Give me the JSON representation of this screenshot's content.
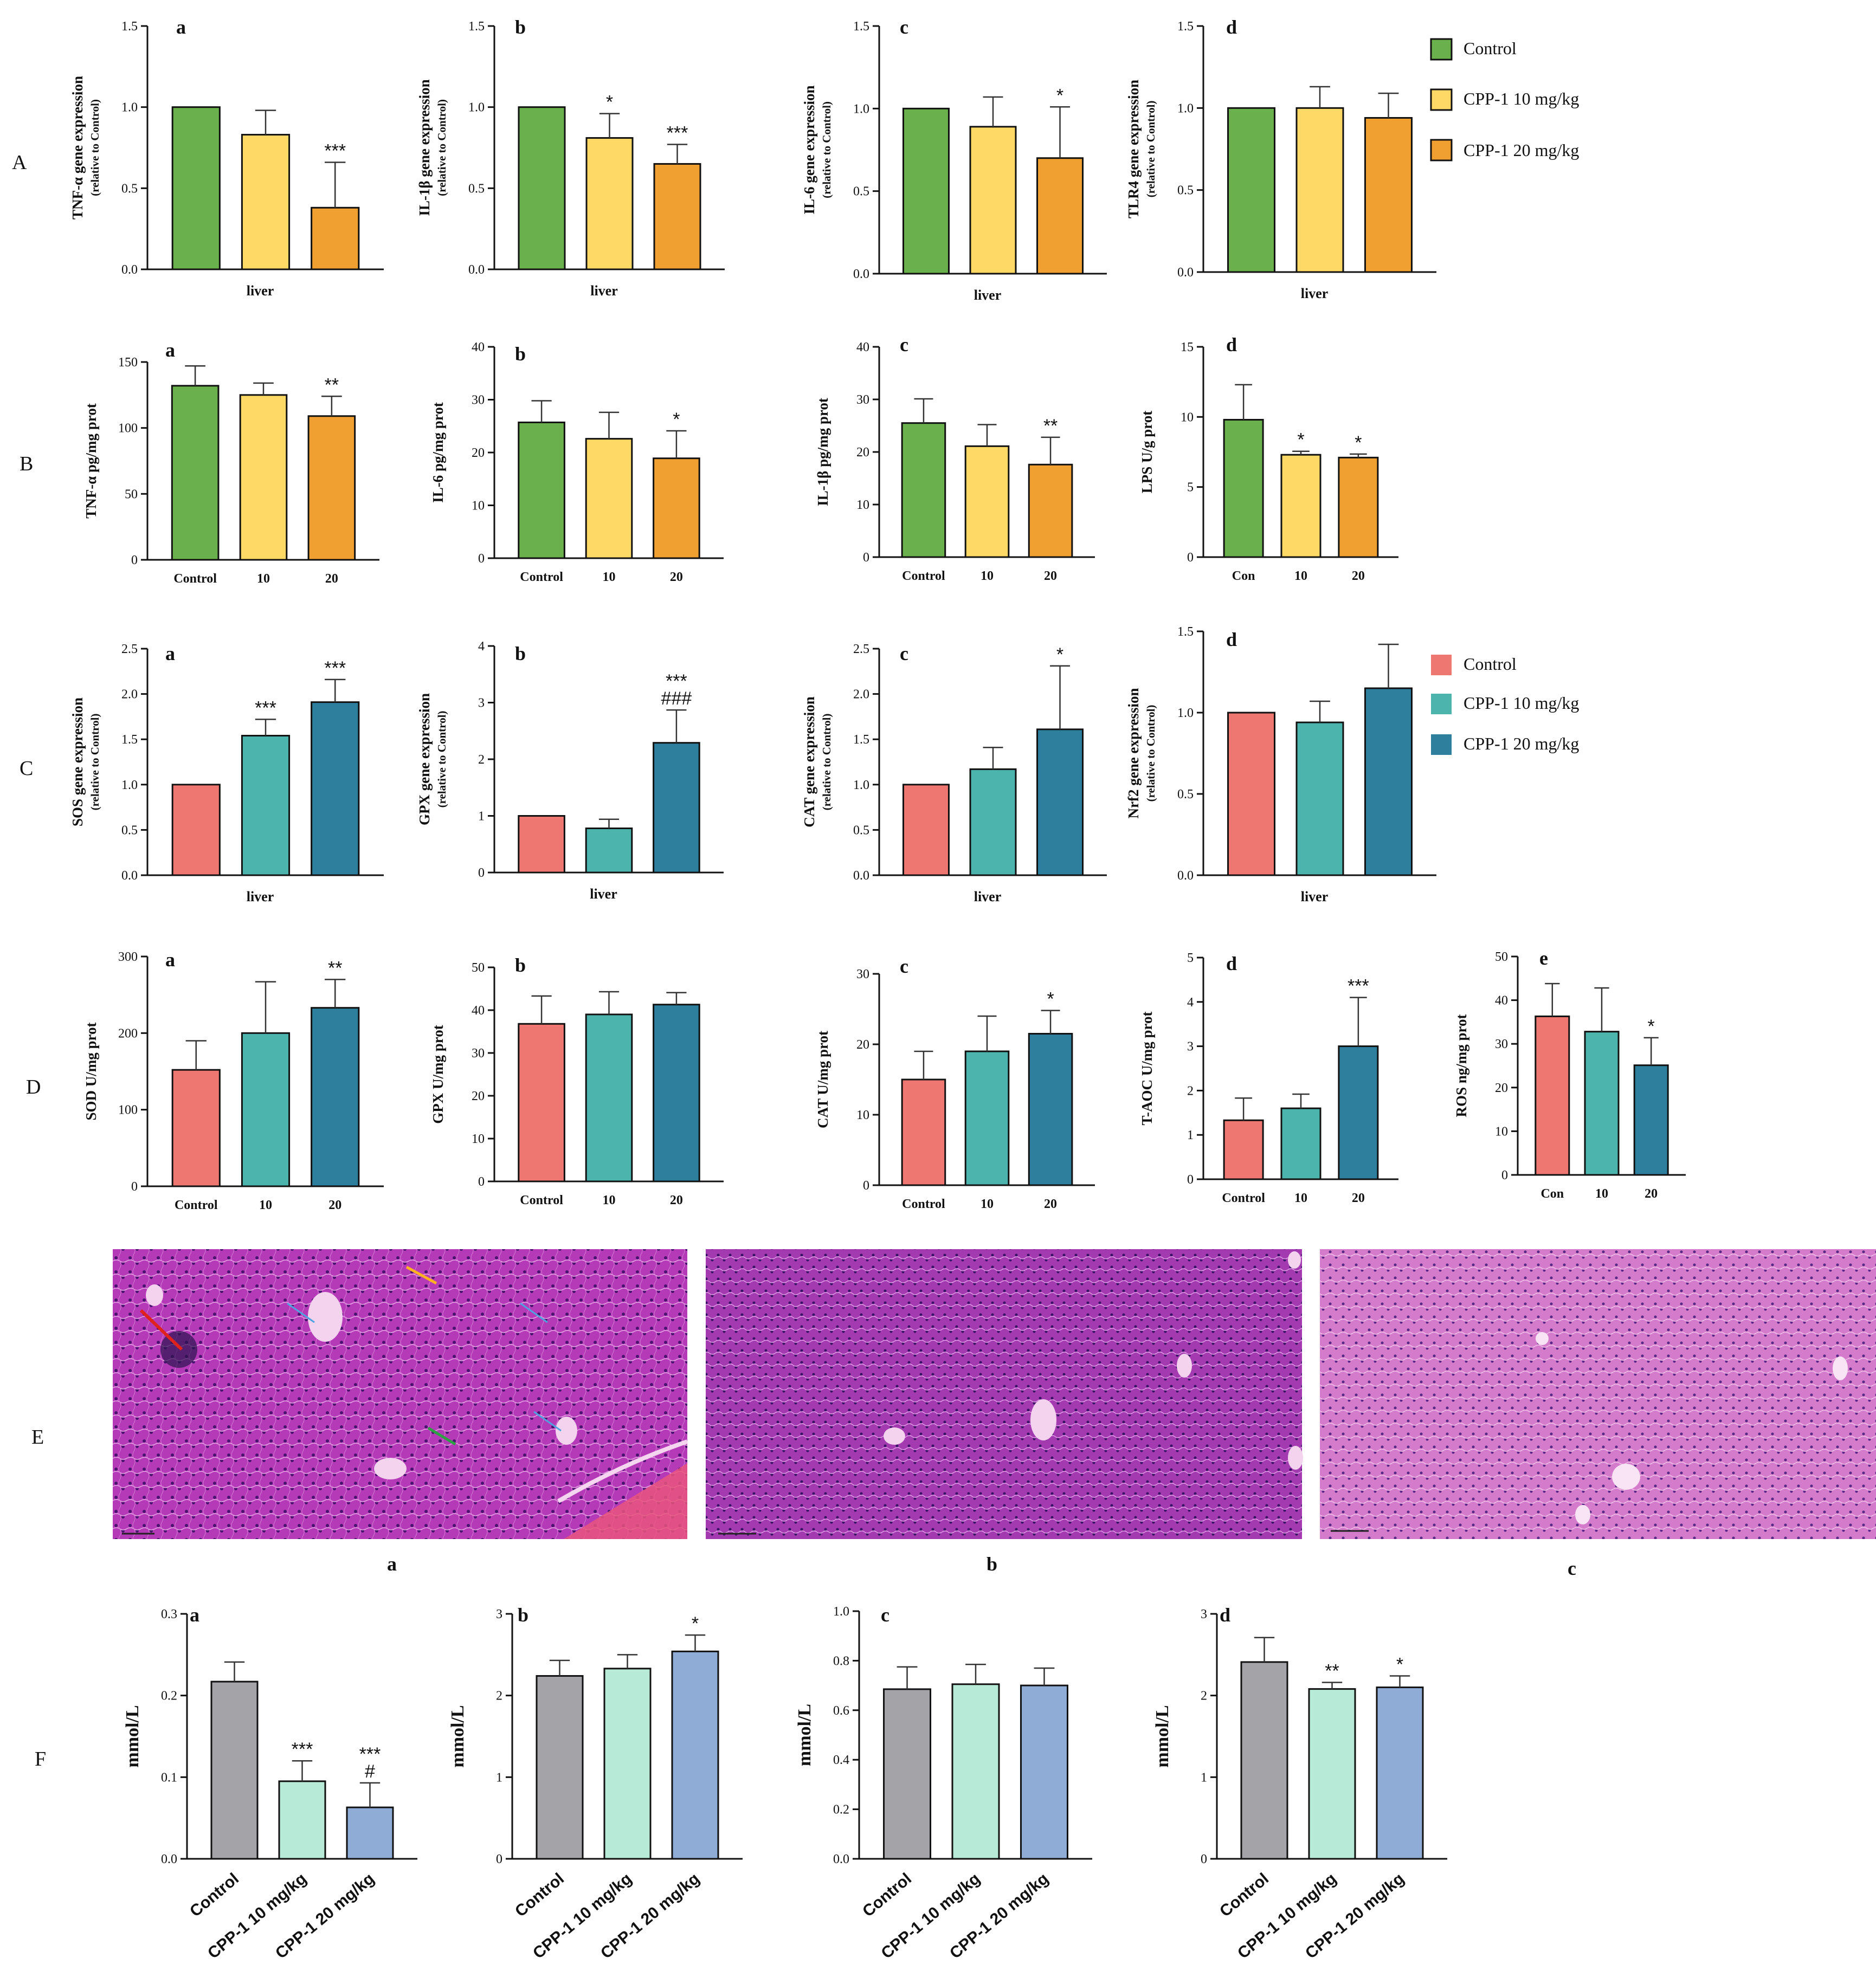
{
  "row_labels": [
    "A",
    "B",
    "C",
    "D",
    "E",
    "F"
  ],
  "legends": {
    "green_orange": [
      {
        "label": "Control",
        "color": "#6ab04c"
      },
      {
        "label": "CPP-1 10 mg/kg",
        "color": "#ffd966"
      },
      {
        "label": "CPP-1 20 mg/kg",
        "color": "#f0a030"
      }
    ],
    "red_teal": [
      {
        "label": "Control",
        "color": "#ee7772"
      },
      {
        "label": "CPP-1 10 mg/kg",
        "color": "#4db3ad"
      },
      {
        "label": "CPP-1 20 mg/kg",
        "color": "#2e7f9e"
      }
    ]
  },
  "histology": {
    "labels": [
      "a",
      "b",
      "c"
    ]
  },
  "chart_data": [
    {
      "id": "A-a",
      "type": "bar",
      "panel": "a",
      "title": "",
      "ylabel": "TNF-α gene expression",
      "ylabel2": "(relative to Control)",
      "xlabel": "liver",
      "categories": [
        "",
        "",
        ""
      ],
      "values": [
        1.0,
        0.83,
        0.38
      ],
      "errors": [
        0,
        0.15,
        0.28
      ],
      "sig": [
        "",
        "",
        "***"
      ],
      "ylim": [
        0,
        1.5
      ],
      "yticks": [
        "0.0",
        "0.5",
        "1.0",
        "1.5"
      ],
      "palette": "go"
    },
    {
      "id": "A-b",
      "type": "bar",
      "panel": "b",
      "ylabel": "IL-1β gene expression",
      "ylabel2": "(relative to Control)",
      "xlabel": "liver",
      "categories": [
        "",
        "",
        ""
      ],
      "values": [
        1.0,
        0.81,
        0.65
      ],
      "errors": [
        0,
        0.15,
        0.12
      ],
      "sig": [
        "",
        "*",
        "***"
      ],
      "ylim": [
        0,
        1.5
      ],
      "yticks": [
        "0.0",
        "0.5",
        "1.0",
        "1.5"
      ],
      "palette": "go"
    },
    {
      "id": "A-c",
      "type": "bar",
      "panel": "c",
      "ylabel": "IL-6 gene expression",
      "ylabel2": "(relative to Control)",
      "xlabel": "liver",
      "categories": [
        "",
        "",
        ""
      ],
      "values": [
        1.0,
        0.89,
        0.7
      ],
      "errors": [
        0,
        0.18,
        0.31
      ],
      "sig": [
        "",
        "",
        "*"
      ],
      "ylim": [
        0,
        1.5
      ],
      "yticks": [
        "0.0",
        "0.5",
        "1.0",
        "1.5"
      ],
      "palette": "go"
    },
    {
      "id": "A-d",
      "type": "bar",
      "panel": "d",
      "ylabel": "TLR4 gene expression",
      "ylabel2": "(relative to Control)",
      "xlabel": "liver",
      "categories": [
        "",
        "",
        ""
      ],
      "values": [
        1.0,
        1.0,
        0.94
      ],
      "errors": [
        0,
        0.13,
        0.15
      ],
      "sig": [
        "",
        "",
        ""
      ],
      "ylim": [
        0,
        1.5
      ],
      "yticks": [
        "0.0",
        "0.5",
        "1.0",
        "1.5"
      ],
      "palette": "go"
    },
    {
      "id": "B-a",
      "type": "bar",
      "panel": "a",
      "ylabel": "TNF-α pg/mg prot",
      "xlabel": "",
      "categories": [
        "Control",
        "10",
        "20"
      ],
      "values": [
        132,
        125,
        109
      ],
      "errors": [
        15,
        9,
        15
      ],
      "sig": [
        "",
        "",
        "**"
      ],
      "ylim": [
        0,
        150
      ],
      "yticks": [
        "0",
        "50",
        "100",
        "150"
      ],
      "palette": "go"
    },
    {
      "id": "B-b",
      "type": "bar",
      "panel": "b",
      "ylabel": "IL-6 pg/mg prot",
      "xlabel": "",
      "categories": [
        "Control",
        "10",
        "20"
      ],
      "values": [
        25.7,
        22.6,
        18.9
      ],
      "errors": [
        4.1,
        5,
        5.2
      ],
      "sig": [
        "",
        "",
        "*"
      ],
      "ylim": [
        0,
        40
      ],
      "yticks": [
        "0",
        "10",
        "20",
        "30",
        "40"
      ],
      "palette": "go"
    },
    {
      "id": "B-c",
      "type": "bar",
      "panel": "c",
      "ylabel": "IL-1β pg/mg prot",
      "xlabel": "",
      "categories": [
        "Control",
        "10",
        "20"
      ],
      "values": [
        25.5,
        21.1,
        17.6
      ],
      "errors": [
        4.6,
        4.1,
        5.2
      ],
      "sig": [
        "",
        "",
        "**"
      ],
      "ylim": [
        0,
        40
      ],
      "yticks": [
        "0",
        "10",
        "20",
        "30",
        "40"
      ],
      "palette": "go"
    },
    {
      "id": "B-d",
      "type": "bar",
      "panel": "d",
      "ylabel": "LPS U/g prot",
      "xlabel": "",
      "categories": [
        "Con",
        "10",
        "20"
      ],
      "values": [
        9.8,
        7.3,
        7.1
      ],
      "errors": [
        2.5,
        0.25,
        0.25
      ],
      "sig": [
        "",
        "*",
        "*"
      ],
      "ylim": [
        0,
        15
      ],
      "yticks": [
        "0",
        "5",
        "10",
        "15"
      ],
      "palette": "go"
    },
    {
      "id": "C-a",
      "type": "bar",
      "panel": "a",
      "ylabel": "SOS gene expression",
      "ylabel2": "(relative to Control)",
      "xlabel": "liver",
      "categories": [
        "",
        "",
        ""
      ],
      "values": [
        1.0,
        1.54,
        1.91
      ],
      "errors": [
        0,
        0.18,
        0.25
      ],
      "sig": [
        "",
        "***",
        "***"
      ],
      "ylim": [
        0,
        2.5
      ],
      "yticks": [
        "0.0",
        "0.5",
        "1.0",
        "1.5",
        "2.0",
        "2.5"
      ],
      "palette": "rt"
    },
    {
      "id": "C-b",
      "type": "bar",
      "panel": "b",
      "ylabel": "GPX gene expression",
      "ylabel2": "(relative to Control)",
      "xlabel": "liver",
      "categories": [
        "",
        "",
        ""
      ],
      "values": [
        1.0,
        0.78,
        2.29
      ],
      "errors": [
        0,
        0.16,
        0.58
      ],
      "sig": [
        "",
        "",
        "***|###"
      ],
      "ylim": [
        0,
        4
      ],
      "yticks": [
        "0",
        "1",
        "2",
        "3",
        "4"
      ],
      "palette": "rt"
    },
    {
      "id": "C-c",
      "type": "bar",
      "panel": "c",
      "ylabel": "CAT gene expression",
      "ylabel2": "(relative to Control)",
      "xlabel": "liver",
      "categories": [
        "",
        "",
        ""
      ],
      "values": [
        1.0,
        1.17,
        1.61
      ],
      "errors": [
        0,
        0.24,
        0.7
      ],
      "sig": [
        "",
        "",
        "*"
      ],
      "ylim": [
        0,
        2.5
      ],
      "yticks": [
        "0.0",
        "0.5",
        "1.0",
        "1.5",
        "2.0",
        "2.5"
      ],
      "palette": "rt"
    },
    {
      "id": "C-d",
      "type": "bar",
      "panel": "d",
      "ylabel": "Nrf2 gene expression",
      "ylabel2": "(relative to Control)",
      "xlabel": "liver",
      "categories": [
        "",
        "",
        ""
      ],
      "values": [
        1.0,
        0.94,
        1.15
      ],
      "errors": [
        0,
        0.13,
        0.27
      ],
      "sig": [
        "",
        "",
        ""
      ],
      "ylim": [
        0,
        1.5
      ],
      "yticks": [
        "0.0",
        "0.5",
        "1.0",
        "1.5"
      ],
      "palette": "rt"
    },
    {
      "id": "D-a",
      "type": "bar",
      "panel": "a",
      "ylabel": "SOD U/mg prot",
      "xlabel": "",
      "categories": [
        "Control",
        "10",
        "20"
      ],
      "values": [
        152,
        200,
        233
      ],
      "errors": [
        38,
        67,
        37
      ],
      "sig": [
        "",
        "",
        "**"
      ],
      "ylim": [
        0,
        300
      ],
      "yticks": [
        "0",
        "100",
        "200",
        "300"
      ],
      "palette": "rt"
    },
    {
      "id": "D-b",
      "type": "bar",
      "panel": "b",
      "ylabel": "GPX U/mg prot",
      "xlabel": "",
      "categories": [
        "Control",
        "10",
        "20"
      ],
      "values": [
        36.8,
        39,
        41.3
      ],
      "errors": [
        6.5,
        5.3,
        2.8
      ],
      "sig": [
        "",
        "",
        ""
      ],
      "ylim": [
        0,
        50
      ],
      "yticks": [
        "0",
        "10",
        "20",
        "30",
        "40",
        "50"
      ],
      "palette": "rt"
    },
    {
      "id": "D-c",
      "type": "bar",
      "panel": "c",
      "ylabel": "CAT U/mg prot",
      "xlabel": "",
      "categories": [
        "Control",
        "10",
        "20"
      ],
      "values": [
        15,
        19,
        21.5
      ],
      "errors": [
        4,
        5,
        3.3
      ],
      "sig": [
        "",
        "",
        "*"
      ],
      "ylim": [
        0,
        30
      ],
      "yticks": [
        "0",
        "10",
        "20",
        "30"
      ],
      "palette": "rt"
    },
    {
      "id": "D-d",
      "type": "bar",
      "panel": "d",
      "ylabel": "T-AOC U/mg prot",
      "xlabel": "",
      "categories": [
        "Control",
        "10",
        "20"
      ],
      "values": [
        1.33,
        1.6,
        3.0
      ],
      "errors": [
        0.5,
        0.32,
        1.1
      ],
      "sig": [
        "",
        "",
        "***"
      ],
      "ylim": [
        0,
        5
      ],
      "yticks": [
        "0",
        "1",
        "2",
        "3",
        "4",
        "5"
      ],
      "palette": "rt"
    },
    {
      "id": "D-e",
      "type": "bar",
      "panel": "e",
      "ylabel": "ROS ng/mg prot",
      "xlabel": "",
      "categories": [
        "Con",
        "10",
        "20"
      ],
      "values": [
        36.3,
        32.8,
        25.1
      ],
      "errors": [
        7.5,
        10,
        6.3
      ],
      "sig": [
        "",
        "",
        "*"
      ],
      "ylim": [
        0,
        50
      ],
      "yticks": [
        "0",
        "10",
        "20",
        "30",
        "40",
        "50"
      ],
      "palette": "rt"
    },
    {
      "id": "F-a",
      "type": "bar",
      "panel": "a",
      "ylabel": "mmol/L",
      "xlabel": "",
      "categories": [
        "Control",
        "CPP-1 10 mg/kg",
        "CPP-1 20 mg/kg"
      ],
      "values": [
        0.217,
        0.095,
        0.063
      ],
      "errors": [
        0.024,
        0.025,
        0.03
      ],
      "sig": [
        "",
        "***",
        "***|#"
      ],
      "ylim": [
        0,
        0.3
      ],
      "yticks": [
        "0.0",
        "0.1",
        "0.2",
        "0.3"
      ],
      "palette": "gp"
    },
    {
      "id": "F-b",
      "type": "bar",
      "panel": "b",
      "ylabel": "mmol/L",
      "xlabel": "",
      "categories": [
        "Control",
        "CPP-1 10 mg/kg",
        "CPP-1 20 mg/kg"
      ],
      "values": [
        2.24,
        2.33,
        2.54
      ],
      "errors": [
        0.19,
        0.17,
        0.2
      ],
      "sig": [
        "",
        "",
        "*"
      ],
      "ylim": [
        0,
        3
      ],
      "yticks": [
        "0",
        "1",
        "2",
        "3"
      ],
      "palette": "gp"
    },
    {
      "id": "F-c",
      "type": "bar",
      "panel": "c",
      "ylabel": "mmol/L",
      "xlabel": "",
      "categories": [
        "Control",
        "CPP-1 10 mg/kg",
        "CPP-1 20 mg/kg"
      ],
      "values": [
        0.685,
        0.705,
        0.7
      ],
      "errors": [
        0.09,
        0.08,
        0.07
      ],
      "sig": [
        "",
        "",
        ""
      ],
      "ylim": [
        0,
        1.0
      ],
      "yticks": [
        "0.0",
        "0.2",
        "0.4",
        "0.6",
        "0.8",
        "1.0"
      ],
      "palette": "gp"
    },
    {
      "id": "F-d",
      "type": "bar",
      "panel": "d",
      "ylabel": "mmol/L",
      "xlabel": "",
      "categories": [
        "Control",
        "CPP-1 10 mg/kg",
        "CPP-1 20 mg/kg"
      ],
      "values": [
        2.41,
        2.08,
        2.1
      ],
      "errors": [
        0.3,
        0.08,
        0.14
      ],
      "sig": [
        "",
        "**",
        "*"
      ],
      "ylim": [
        0,
        3
      ],
      "yticks": [
        "0",
        "1",
        "2",
        "3"
      ],
      "palette": "gp"
    }
  ],
  "palettes": {
    "go": [
      "#6ab04c",
      "#ffd966",
      "#f0a030"
    ],
    "rt": [
      "#ee7772",
      "#4db3ad",
      "#2e7f9e"
    ],
    "gp": [
      "#a3a3a8",
      "#b7ead7",
      "#8eacd6"
    ]
  }
}
